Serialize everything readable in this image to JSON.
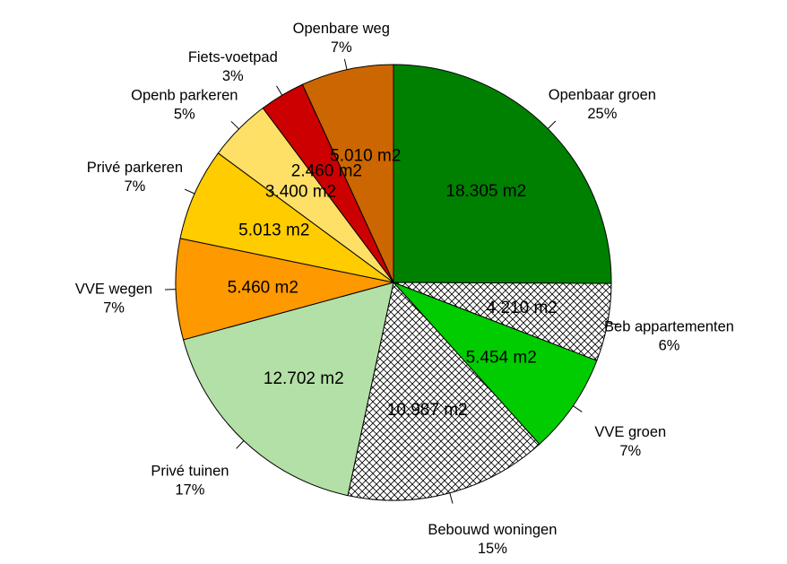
{
  "chart_data": {
    "type": "pie",
    "start_angle_deg": 90,
    "direction": "clockwise",
    "slices": [
      {
        "name": "Openbaar groen",
        "value": 18305,
        "value_label": "18.305 m2",
        "percent_label": "25%",
        "color": "#008000",
        "pattern": "none"
      },
      {
        "name": "Beb appartementen",
        "value": 4210,
        "value_label": "4.210 m2",
        "percent_label": "6%",
        "color": "#ffffff",
        "pattern": "crosshatch"
      },
      {
        "name": "VVE groen",
        "value": 5454,
        "value_label": "5.454 m2",
        "percent_label": "7%",
        "color": "#00cc00",
        "pattern": "none"
      },
      {
        "name": "Bebouwd woningen",
        "value": 10987,
        "value_label": "10.987 m2",
        "percent_label": "15%",
        "color": "#ffffff",
        "pattern": "crosshatch"
      },
      {
        "name": "Privé tuinen",
        "value": 12702,
        "value_label": "12.702 m2",
        "percent_label": "17%",
        "color": "#b3e0a6",
        "pattern": "none"
      },
      {
        "name": "VVE wegen",
        "value": 5460,
        "value_label": "5.460 m2",
        "percent_label": "7%",
        "color": "#ff9900",
        "pattern": "none"
      },
      {
        "name": "Privé parkeren",
        "value": 5013,
        "value_label": "5.013 m2",
        "percent_label": "7%",
        "color": "#ffcc00",
        "pattern": "none"
      },
      {
        "name": "Openb parkeren",
        "value": 3400,
        "value_label": "3.400 m2",
        "percent_label": "5%",
        "color": "#ffe066",
        "pattern": "none"
      },
      {
        "name": "Fiets-voetpad",
        "value": 2460,
        "value_label": "2.460 m2",
        "percent_label": "3%",
        "color": "#cc0000",
        "pattern": "none"
      },
      {
        "name": "Openbare weg",
        "value": 5010,
        "value_label": "5.010 m2",
        "percent_label": "7%",
        "color": "#cc6600",
        "pattern": "none"
      }
    ]
  }
}
